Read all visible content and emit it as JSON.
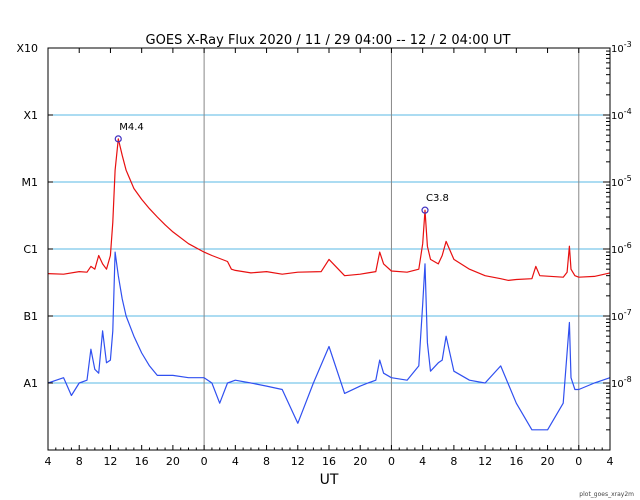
{
  "chart_data": {
    "type": "line",
    "title": "GOES X-Ray Flux   2020 / 11 / 29   04:00 -- 12 /  2   04:00   UT",
    "xlabel": "UT",
    "x_ticks": [
      "4",
      "8",
      "12",
      "16",
      "20",
      "0",
      "4",
      "8",
      "12",
      "16",
      "20",
      "0",
      "4",
      "8",
      "12",
      "16",
      "20",
      "0",
      "4"
    ],
    "x_range_hours": [
      0,
      72
    ],
    "day_boundaries_hours": [
      20,
      44,
      68
    ],
    "y_scale": "log",
    "ylim": [
      1e-09,
      0.001
    ],
    "y_ticks_left": [
      "X10",
      "X1",
      "M1",
      "C1",
      "B1",
      "A1"
    ],
    "y_ticks_left_values": [
      0.001,
      0.0001,
      1e-05,
      1e-06,
      1e-07,
      1e-08
    ],
    "y_ticks_right": [
      "10^-3",
      "10^-4",
      "10^-5",
      "10^-6",
      "10^-7",
      "10^-8"
    ],
    "grid": "horizontal at each decade, vertical at day boundaries",
    "flares": [
      {
        "label": "M4.4",
        "x_hour": 9.0,
        "value": 4.4e-05
      },
      {
        "label": "C3.8",
        "x_hour": 48.3,
        "value": 3.8e-06
      }
    ],
    "series": [
      {
        "color": "#e81010",
        "x": [
          0,
          2,
          4,
          5,
          5.5,
          6,
          6.5,
          7,
          7.5,
          8,
          8.3,
          8.6,
          9,
          9.5,
          10,
          11,
          12,
          13,
          14,
          15,
          16,
          18,
          20,
          21,
          23,
          23.5,
          24,
          26,
          28,
          30,
          32,
          35,
          36,
          38,
          40,
          41,
          42,
          42.5,
          43,
          44,
          46,
          47.5,
          48,
          48.3,
          48.6,
          49,
          50,
          50.5,
          51,
          52,
          54,
          56,
          58,
          59,
          60,
          62,
          62.5,
          63,
          66,
          66.5,
          66.8,
          67,
          67.5,
          68,
          70,
          72
        ],
        "values": [
          4.3e-07,
          4.2e-07,
          4.6e-07,
          4.5e-07,
          5.5e-07,
          5e-07,
          8e-07,
          6e-07,
          5e-07,
          8e-07,
          2.5e-06,
          1.5e-05,
          4.4e-05,
          2.5e-05,
          1.5e-05,
          8e-06,
          5.5e-06,
          4e-06,
          3e-06,
          2.3e-06,
          1.8e-06,
          1.2e-06,
          9e-07,
          8e-07,
          6.5e-07,
          5e-07,
          4.8e-07,
          4.4e-07,
          4.6e-07,
          4.2e-07,
          4.5e-07,
          4.6e-07,
          7e-07,
          4e-07,
          4.2e-07,
          4.4e-07,
          4.6e-07,
          9e-07,
          6e-07,
          4.7e-07,
          4.5e-07,
          5e-07,
          1.2e-06,
          3.8e-06,
          1.1e-06,
          7e-07,
          6e-07,
          8e-07,
          1.3e-06,
          7e-07,
          5e-07,
          4e-07,
          3.6e-07,
          3.4e-07,
          3.5e-07,
          3.6e-07,
          5.5e-07,
          4e-07,
          3.8e-07,
          4.5e-07,
          1.1e-06,
          5e-07,
          4e-07,
          3.8e-07,
          3.9e-07,
          4.4e-07
        ]
      },
      {
        "color": "#3050f0",
        "x": [
          0,
          2,
          3,
          4,
          5,
          5.5,
          6,
          6.5,
          7,
          7.5,
          8,
          8.3,
          8.6,
          9,
          9.5,
          10,
          11,
          12,
          13,
          14,
          16,
          18,
          20,
          21,
          22,
          23,
          24,
          26,
          28,
          30,
          32,
          34,
          36,
          38,
          40,
          41,
          42,
          42.5,
          43,
          44,
          46,
          47.5,
          48,
          48.3,
          48.6,
          49,
          50,
          50.5,
          51,
          52,
          54,
          56,
          58,
          60,
          62,
          64,
          66,
          66.8,
          67,
          67.5,
          68,
          70,
          72
        ],
        "values": [
          1e-08,
          1.2e-08,
          6.5e-09,
          1e-08,
          1.1e-08,
          3.2e-08,
          1.6e-08,
          1.4e-08,
          6e-08,
          2e-08,
          2.2e-08,
          6e-08,
          9e-07,
          4e-07,
          1.8e-07,
          1e-07,
          5e-08,
          2.8e-08,
          1.8e-08,
          1.3e-08,
          1.3e-08,
          1.2e-08,
          1.2e-08,
          1e-08,
          5e-09,
          1e-08,
          1.1e-08,
          1e-08,
          9e-09,
          8e-09,
          2.5e-09,
          1e-08,
          3.5e-08,
          7e-09,
          9e-09,
          1e-08,
          1.1e-08,
          2.2e-08,
          1.4e-08,
          1.2e-08,
          1.1e-08,
          1.8e-08,
          1.5e-07,
          6e-07,
          4e-08,
          1.5e-08,
          2e-08,
          2.2e-08,
          5e-08,
          1.5e-08,
          1.1e-08,
          1e-08,
          1.8e-08,
          5e-09,
          2e-09,
          2e-09,
          5e-09,
          8e-08,
          1.2e-08,
          8e-09,
          8e-09,
          1e-08,
          1.2e-08
        ]
      }
    ]
  },
  "footer": "plot_goes_xray2m"
}
